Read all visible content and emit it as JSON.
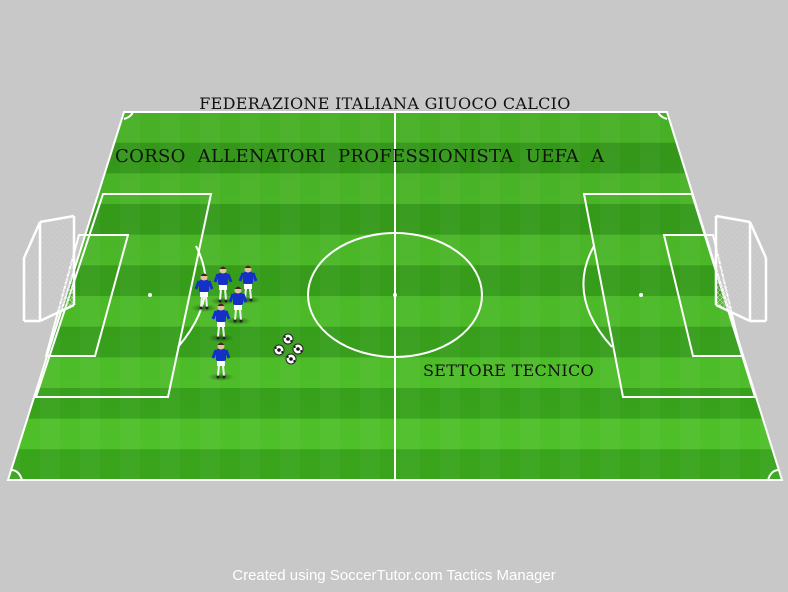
{
  "pitch": {
    "colors": {
      "grass_light": "#4fc22a",
      "grass_dark": "#39a51c",
      "lines": "#ffffff",
      "background": "#c8c8c8"
    }
  },
  "labels": {
    "federation": "FEDERAZIONE ITALIANA GIUOCO CALCIO",
    "course": "CORSO  ALLENATORI PROFESSIONISTA   UEFA A",
    "sector": "SETTORE TECNICO"
  },
  "players": {
    "count": 6,
    "kit": {
      "shirt": "#1530c8",
      "shorts": "#ffffff"
    }
  },
  "balls": {
    "count": 4
  },
  "footer": {
    "credit": "Created using SoccerTutor.com Tactics Manager"
  }
}
